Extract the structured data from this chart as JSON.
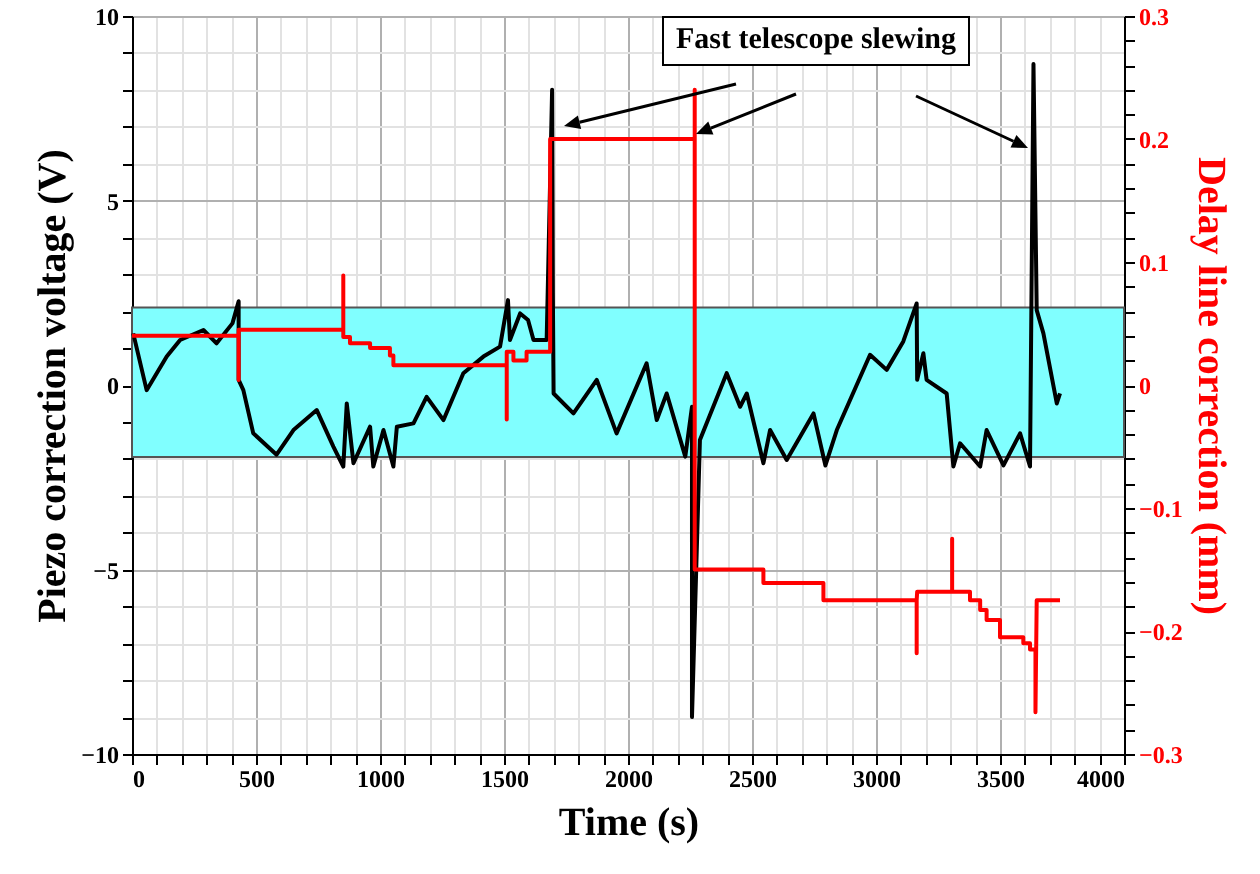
{
  "chart_data": {
    "type": "line",
    "xlabel": "Time (s)",
    "ylabel": "Piezo correction voltage (V)",
    "y2label": "Delay line correction (mm)",
    "annotations": [
      "Fast telescope slewing"
    ],
    "xlim": [
      0,
      4000
    ],
    "ylim": [
      -10,
      10
    ],
    "y2lim": [
      -0.3,
      0.3
    ],
    "xticks": [
      0,
      {
        "value": 100,
        "label": null
      },
      {
        "value": 200,
        "label": null
      },
      {
        "value": 300,
        "label": null
      },
      {
        "value": 400,
        "label": null
      },
      500,
      {
        "value": 600,
        "label": null
      },
      {
        "value": 700,
        "label": null
      },
      {
        "value": 800,
        "label": null
      },
      {
        "value": 900,
        "label": null
      },
      1000,
      {
        "value": 1100,
        "label": null
      },
      {
        "value": 1200,
        "label": null
      },
      {
        "value": 1300,
        "label": null
      },
      {
        "value": 1400,
        "label": null
      },
      1500,
      {
        "value": 1600,
        "label": null
      },
      {
        "value": 1700,
        "label": null
      },
      {
        "value": 1800,
        "label": null
      },
      {
        "value": 1900,
        "label": null
      },
      2000,
      {
        "value": 2100,
        "label": null
      },
      {
        "value": 2200,
        "label": null
      },
      {
        "value": 2300,
        "label": null
      },
      {
        "value": 2400,
        "label": null
      },
      2500,
      {
        "value": 2600,
        "label": null
      },
      {
        "value": 2700,
        "label": null
      },
      {
        "value": 2800,
        "label": null
      },
      {
        "value": 2900,
        "label": null
      },
      3000,
      {
        "value": 3100,
        "label": null
      },
      {
        "value": 3200,
        "label": null
      },
      {
        "value": 3300,
        "label": null
      },
      {
        "value": 3400,
        "label": null
      },
      3500,
      {
        "value": 3600,
        "label": null
      },
      {
        "value": 3700,
        "label": null
      },
      {
        "value": 3800,
        "label": null
      },
      {
        "value": 3900,
        "label": null
      },
      4000
    ],
    "yticks": [
      -10,
      {
        "value": -9,
        "label": null
      },
      {
        "value": -8,
        "label": null
      },
      {
        "value": -7,
        "label": null
      },
      {
        "value": -6,
        "label": null
      },
      -5,
      {
        "value": -4,
        "label": null
      },
      {
        "value": -3,
        "label": null
      },
      {
        "value": -2,
        "label": null
      },
      {
        "value": -1,
        "label": null
      },
      0,
      {
        "value": 1,
        "label": null
      },
      {
        "value": 2,
        "label": null
      },
      {
        "value": 3,
        "label": null
      },
      {
        "value": 4,
        "label": null
      },
      5,
      {
        "value": 6,
        "label": null
      },
      {
        "value": 7,
        "label": null
      },
      {
        "value": 8,
        "label": null
      },
      {
        "value": 9,
        "label": null
      },
      10
    ],
    "y2ticks": [
      -0.3,
      {
        "value": -0.28,
        "label": null
      },
      {
        "value": -0.26,
        "label": null
      },
      {
        "value": -0.24,
        "label": null
      },
      {
        "value": -0.22,
        "label": null
      },
      -0.2,
      {
        "value": -0.18,
        "label": null
      },
      {
        "value": -0.16,
        "label": null
      },
      {
        "value": -0.14,
        "label": null
      },
      {
        "value": -0.12,
        "label": null
      },
      -0.1,
      {
        "value": -0.08,
        "label": null
      },
      {
        "value": -0.06,
        "label": null
      },
      {
        "value": -0.04,
        "label": null
      },
      {
        "value": -0.02,
        "label": null
      },
      0,
      {
        "value": 0.02,
        "label": null
      },
      {
        "value": 0.04,
        "label": null
      },
      {
        "value": 0.06,
        "label": null
      },
      {
        "value": 0.08,
        "label": null
      },
      0.1,
      {
        "value": 0.12,
        "label": null
      },
      {
        "value": 0.14,
        "label": null
      },
      {
        "value": 0.16,
        "label": null
      },
      {
        "value": 0.18,
        "label": null
      },
      0.2,
      {
        "value": 0.22,
        "label": null
      },
      {
        "value": 0.24,
        "label": null
      },
      {
        "value": 0.26,
        "label": null
      },
      {
        "value": 0.28,
        "label": null
      },
      0.3
    ],
    "grid": true,
    "bands": [
      {
        "axis": "y",
        "from": -1.95,
        "to": 2.1,
        "color": "#80ffff"
      }
    ],
    "series": [
      {
        "color": "#000000",
        "x": [
          5,
          59,
          140,
          194,
          288,
          341,
          405,
          430,
          430,
          449,
          489,
          583,
          651,
          745,
          812,
          852,
          866,
          893,
          960,
          973,
          1014,
          1054,
          1068,
          1135,
          1188,
          1256,
          1336,
          1417,
          1484,
          1516,
          1524,
          1565,
          1597,
          1619,
          1672,
          1694,
          1697,
          1700,
          1780,
          1874,
          1954,
          2075,
          2116,
          2156,
          2231,
          2258,
          2258,
          2290,
          2398,
          2452,
          2479,
          2546,
          2573,
          2640,
          2748,
          2796,
          2842,
          2976,
          3043,
          3110,
          3164,
          3166,
          3191,
          3204,
          3285,
          3312,
          3339,
          3420,
          3446,
          3514,
          3581,
          3621,
          3635,
          3648,
          3675,
          3729,
          3742
        ],
        "values": [
          1.4,
          -0.14,
          0.77,
          1.22,
          1.49,
          1.13,
          1.67,
          2.27,
          0.14,
          -0.14,
          -1.31,
          -1.89,
          -1.22,
          -0.68,
          -1.67,
          -2.21,
          -0.5,
          -2.12,
          -1.13,
          -2.21,
          -1.22,
          -2.21,
          -1.13,
          -1.04,
          -0.32,
          -0.95,
          0.32,
          0.77,
          1.04,
          2.3,
          1.22,
          1.94,
          1.76,
          1.22,
          1.22,
          8.0,
          2.5,
          -0.23,
          -0.77,
          0.14,
          -1.31,
          0.59,
          -0.95,
          -0.23,
          -1.94,
          -0.59,
          -9.0,
          -1.49,
          0.32,
          -0.59,
          -0.23,
          -2.12,
          -1.22,
          -2.03,
          -0.77,
          -2.18,
          -1.22,
          0.82,
          0.41,
          1.18,
          2.21,
          0.14,
          0.86,
          0.14,
          -0.23,
          -2.21,
          -1.58,
          -2.21,
          -1.22,
          -2.18,
          -1.31,
          -2.21,
          8.7,
          2.03,
          1.4,
          -0.5,
          -0.23
        ]
      },
      {
        "color": "#ff0000",
        "axis": "y2",
        "x": [
          0,
          430,
          430,
          430,
          852,
          852,
          852,
          879,
          879,
          960,
          960,
          1040,
          1040,
          1054,
          1054,
          1511,
          1511,
          1511,
          1538,
          1538,
          1591,
          1591,
          1686,
          1686,
          2269,
          2269,
          2269,
          2546,
          2546,
          2788,
          2788,
          3164,
          3164,
          3164,
          3166,
          3307,
          3307,
          3307,
          3379,
          3379,
          3420,
          3420,
          3446,
          3446,
          3500,
          3500,
          3594,
          3594,
          3621,
          3621,
          3643,
          3643,
          3648,
          3742
        ],
        "values": [
          0.04,
          0.04,
          0.004,
          0.045,
          0.045,
          0.089,
          0.039,
          0.039,
          0.034,
          0.034,
          0.03,
          0.03,
          0.024,
          0.024,
          0.016,
          0.016,
          -0.028,
          0.027,
          0.027,
          0.02,
          0.02,
          0.027,
          0.027,
          0.2,
          0.2,
          0.24,
          -0.15,
          -0.15,
          -0.161,
          -0.161,
          -0.175,
          -0.175,
          -0.218,
          -0.175,
          -0.168,
          -0.168,
          -0.125,
          -0.168,
          -0.168,
          -0.175,
          -0.175,
          -0.183,
          -0.183,
          -0.191,
          -0.191,
          -0.205,
          -0.205,
          -0.21,
          -0.21,
          -0.215,
          -0.215,
          -0.266,
          -0.175,
          -0.175
        ]
      }
    ]
  }
}
